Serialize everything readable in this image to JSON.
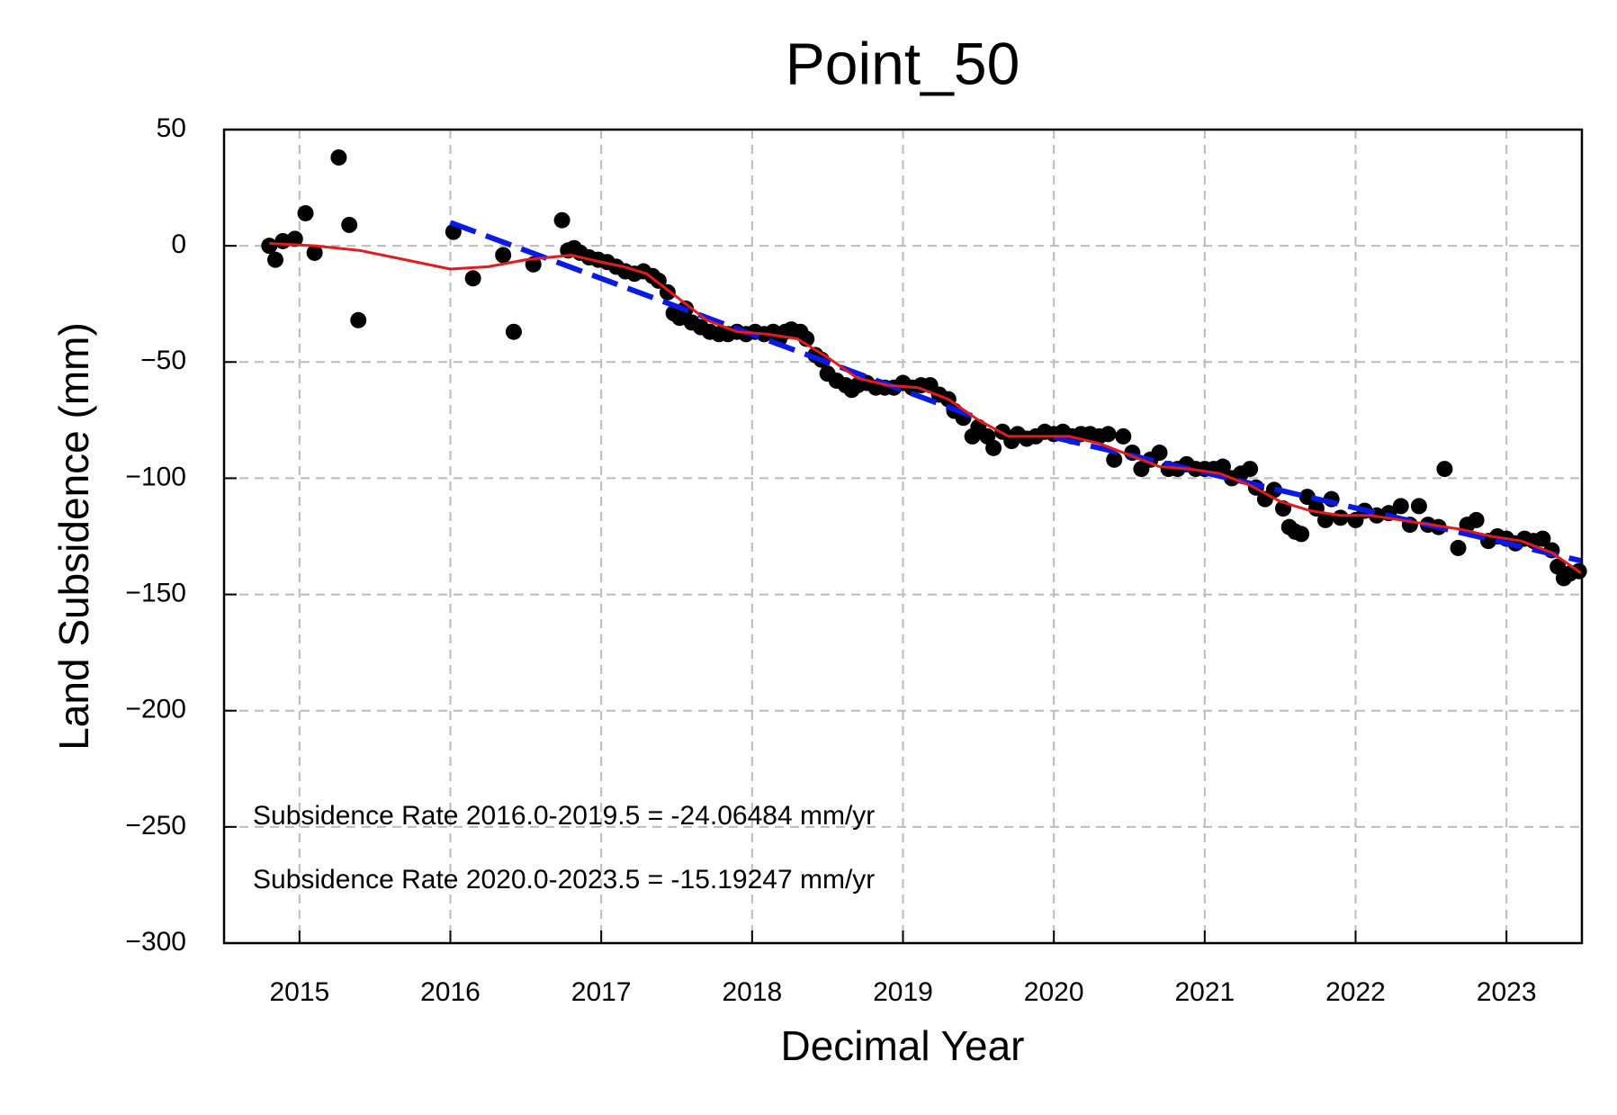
{
  "chart_data": {
    "type": "scatter",
    "title": "Point_50",
    "x_label": "Decimal Year",
    "y_label": "Land Subsidence (mm)",
    "xlim": [
      2014.5,
      2023.5
    ],
    "ylim": [
      -300,
      50
    ],
    "xticks": [
      2015,
      2016,
      2017,
      2018,
      2019,
      2020,
      2021,
      2022,
      2023
    ],
    "yticks": [
      {
        "value": -300,
        "label": "−300"
      },
      {
        "value": -250,
        "label": "−250"
      },
      {
        "value": -200,
        "label": "−200"
      },
      {
        "value": -150,
        "label": "−150"
      },
      {
        "value": -100,
        "label": "−100"
      },
      {
        "value": -50,
        "label": "−50"
      },
      0,
      50
    ],
    "grid": true,
    "annotations": [
      "Subsidence Rate 2016.0-2019.5 = -24.06484 mm/yr",
      "Subsidence Rate 2020.0-2023.5 = -15.19247 mm/yr"
    ],
    "series": [
      {
        "kind": "scatter",
        "color": "#000000",
        "x": [
          2014.8,
          2014.84,
          2014.89,
          2014.97,
          2015.04,
          2015.1,
          2015.26,
          2015.33,
          2015.39,
          2016.02,
          2016.15,
          2016.35,
          2016.42,
          2016.55,
          2016.74,
          2016.78,
          2016.82,
          2016.86,
          2016.92,
          2016.98,
          2017.04,
          2017.1,
          2017.16,
          2017.22,
          2017.28,
          2017.34,
          2017.38,
          2017.44,
          2017.48,
          2017.52,
          2017.56,
          2017.6,
          2017.66,
          2017.72,
          2017.78,
          2017.84,
          2017.9,
          2017.96,
          2018.02,
          2018.08,
          2018.14,
          2018.18,
          2018.22,
          2018.26,
          2018.32,
          2018.36,
          2018.42,
          2018.46,
          2018.5,
          2018.56,
          2018.62,
          2018.66,
          2018.7,
          2018.76,
          2018.82,
          2018.88,
          2018.94,
          2019.0,
          2019.06,
          2019.12,
          2019.18,
          2019.24,
          2019.3,
          2019.34,
          2019.4,
          2019.46,
          2019.5,
          2019.56,
          2019.6,
          2019.66,
          2019.72,
          2019.76,
          2019.82,
          2019.88,
          2019.94,
          2020.0,
          2020.06,
          2020.12,
          2020.18,
          2020.24,
          2020.3,
          2020.36,
          2020.4,
          2020.46,
          2020.52,
          2020.58,
          2020.64,
          2020.7,
          2020.76,
          2020.82,
          2020.88,
          2020.94,
          2021.0,
          2021.06,
          2021.12,
          2021.18,
          2021.24,
          2021.3,
          2021.34,
          2021.4,
          2021.46,
          2021.52,
          2021.56,
          2021.6,
          2021.64,
          2021.68,
          2021.74,
          2021.8,
          2021.84,
          2021.9,
          2022.0,
          2022.06,
          2022.14,
          2022.22,
          2022.3,
          2022.36,
          2022.42,
          2022.48,
          2022.55,
          2022.59,
          2022.68,
          2022.74,
          2022.8,
          2022.88,
          2022.94,
          2023.0,
          2023.06,
          2023.12,
          2023.18,
          2023.24,
          2023.3,
          2023.34,
          2023.38,
          2023.42,
          2023.48
        ],
        "values": [
          0,
          -6,
          2,
          3,
          14,
          -3,
          38,
          9,
          -32,
          6,
          -14,
          -4,
          -37,
          -8,
          11,
          -2,
          -1,
          -3,
          -5,
          -6,
          -7,
          -9,
          -11,
          -12,
          -11,
          -13,
          -15,
          -20,
          -29,
          -31,
          -27,
          -33,
          -35,
          -37,
          -38,
          -38,
          -37,
          -38,
          -37,
          -38,
          -37,
          -40,
          -37,
          -36,
          -37,
          -40,
          -47,
          -49,
          -55,
          -58,
          -60,
          -62,
          -60,
          -59,
          -61,
          -61,
          -61,
          -59,
          -61,
          -60,
          -60,
          -64,
          -66,
          -71,
          -74,
          -82,
          -78,
          -82,
          -87,
          -80,
          -84,
          -81,
          -83,
          -82,
          -80,
          -81,
          -80,
          -82,
          -81,
          -81,
          -82,
          -81,
          -92,
          -82,
          -89,
          -96,
          -92,
          -89,
          -96,
          -96,
          -94,
          -96,
          -96,
          -96,
          -95,
          -100,
          -98,
          -96,
          -104,
          -109,
          -105,
          -113,
          -121,
          -123,
          -124,
          -108,
          -113,
          -118,
          -109,
          -117,
          -118,
          -114,
          -116,
          -115,
          -112,
          -120,
          -112,
          -120,
          -121,
          -96,
          -130,
          -120,
          -118,
          -127,
          -125,
          -126,
          -128,
          -126,
          -127,
          -126,
          -131,
          -138,
          -143,
          -141,
          -140
        ]
      },
      {
        "kind": "line",
        "color": "#e41a1c",
        "x": [
          2014.8,
          2015.1,
          2015.4,
          2015.7,
          2016.0,
          2016.25,
          2016.5,
          2016.8,
          2017.0,
          2017.15,
          2017.3,
          2017.5,
          2017.7,
          2017.9,
          2018.1,
          2018.3,
          2018.5,
          2018.7,
          2018.9,
          2019.1,
          2019.3,
          2019.5,
          2019.7,
          2019.9,
          2020.1,
          2020.3,
          2020.5,
          2020.7,
          2020.9,
          2021.1,
          2021.3,
          2021.5,
          2021.7,
          2021.9,
          2022.1,
          2022.3,
          2022.5,
          2022.7,
          2022.9,
          2023.1,
          2023.3,
          2023.5
        ],
        "values": [
          1,
          0,
          -2,
          -6,
          -10,
          -9,
          -6,
          -4,
          -7,
          -9,
          -12,
          -22,
          -32,
          -37,
          -38,
          -40,
          -48,
          -57,
          -60,
          -61,
          -66,
          -75,
          -82,
          -82,
          -82,
          -85,
          -90,
          -95,
          -96,
          -98,
          -103,
          -110,
          -114,
          -116,
          -116,
          -118,
          -120,
          -122,
          -125,
          -127,
          -132,
          -141
        ]
      },
      {
        "kind": "line",
        "dashed": true,
        "color": "#0a1ae6",
        "x": [
          2016.0,
          2019.5
        ],
        "values": [
          10,
          -74.2
        ]
      },
      {
        "kind": "line",
        "dashed": true,
        "color": "#0a1ae6",
        "x": [
          2020.0,
          2023.5
        ],
        "values": [
          -82.4,
          -135.6
        ]
      }
    ]
  }
}
